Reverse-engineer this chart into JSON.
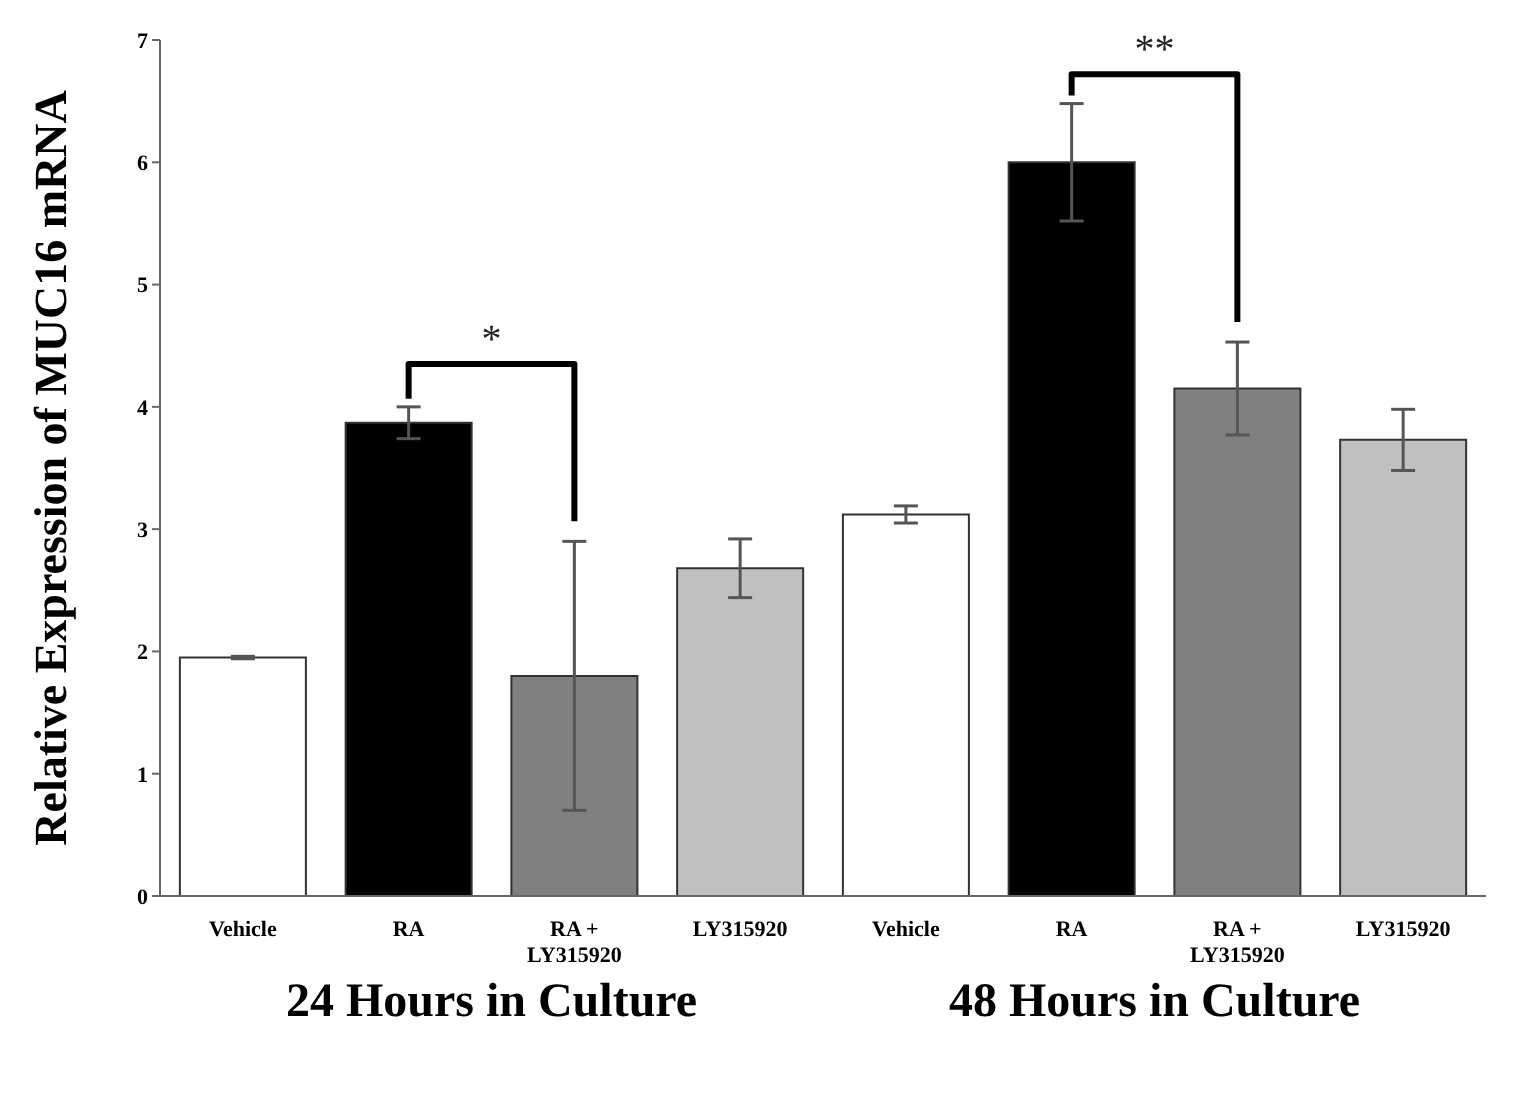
{
  "chart_data": {
    "type": "bar",
    "ylabel": "Relative Expression of MUC16 mRNA",
    "categories": [
      "Vehicle",
      "RA",
      "RA + LY315920",
      "LY315920",
      "Vehicle",
      "RA",
      "RA + LY315920",
      "LY315920"
    ],
    "values": [
      1.95,
      3.87,
      1.8,
      2.68,
      3.12,
      6.0,
      4.15,
      3.73
    ],
    "errors": [
      0.01,
      0.13,
      1.1,
      0.24,
      0.07,
      0.48,
      0.38,
      0.25
    ],
    "colors": [
      "#ffffff",
      "#000000",
      "#808080",
      "#c0c0c0",
      "#ffffff",
      "#000000",
      "#808080",
      "#c0c0c0"
    ],
    "ylim": [
      0,
      7
    ],
    "yticks": [
      0,
      1,
      2,
      3,
      4,
      5,
      6,
      7
    ],
    "grid": false,
    "annotations": [
      "24 Hours in Culture",
      "48 Hours in Culture",
      "*",
      "**"
    ]
  }
}
